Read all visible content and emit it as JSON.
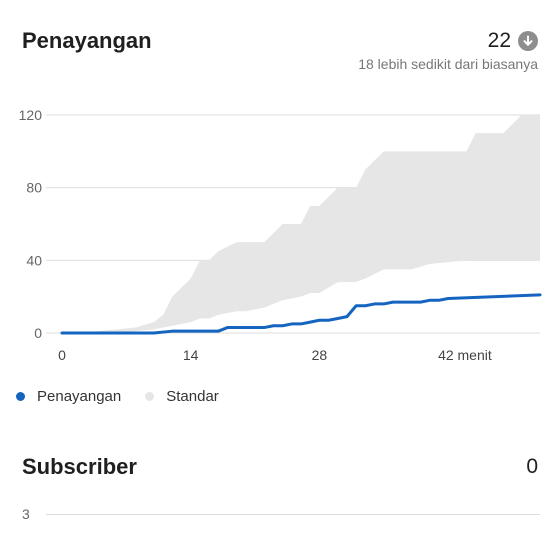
{
  "views_card": {
    "title": "Penayangan",
    "value": "22",
    "trend_icon": "arrow-down-circle-icon",
    "comparison_text": "18 lebih sedikit dari biasanya"
  },
  "chart_data": {
    "type": "line",
    "x_ticks": [
      "0",
      "14",
      "28",
      "42 menit"
    ],
    "x_tick_values": [
      0,
      14,
      28,
      42
    ],
    "y_ticks": [
      "0",
      "40",
      "80",
      "120"
    ],
    "y_tick_values": [
      0,
      40,
      80,
      120
    ],
    "xlim": [
      0,
      52
    ],
    "ylim": [
      0,
      120
    ],
    "grid": true,
    "legend_position": "bottom-left",
    "series": [
      {
        "name": "Penayangan",
        "color": "#1565c0",
        "x": [
          0,
          10,
          12,
          17,
          18,
          22,
          23,
          24,
          25,
          26,
          27,
          28,
          29,
          30,
          31,
          32,
          33,
          34,
          35,
          36,
          38,
          39,
          40,
          41,
          42,
          52
        ],
        "y": [
          0,
          0,
          1,
          1,
          3,
          3,
          4,
          4,
          5,
          5,
          6,
          7,
          7,
          8,
          9,
          15,
          15,
          16,
          16,
          17,
          17,
          17,
          18,
          18,
          19,
          21
        ]
      }
    ],
    "band": {
      "name": "Standar",
      "color": "#e6e6e6",
      "x": [
        0,
        4,
        8,
        10,
        11,
        12,
        14,
        15,
        16,
        17,
        19,
        20,
        22,
        23,
        24,
        26,
        27,
        28,
        29,
        30,
        32,
        33,
        35,
        38,
        40,
        44,
        45,
        48,
        50,
        51,
        52
      ],
      "upper": [
        0,
        1,
        3,
        6,
        10,
        20,
        30,
        40,
        40,
        45,
        50,
        50,
        50,
        55,
        60,
        60,
        70,
        70,
        75,
        80,
        80,
        90,
        100,
        100,
        100,
        100,
        110,
        110,
        120,
        120,
        120
      ],
      "lower": [
        0,
        0,
        1,
        2,
        3,
        4,
        6,
        8,
        8,
        10,
        12,
        12,
        14,
        16,
        18,
        20,
        22,
        22,
        25,
        28,
        28,
        30,
        35,
        35,
        38,
        40,
        40,
        40,
        40,
        40,
        40
      ]
    }
  },
  "legend": {
    "views_label": "Penayangan",
    "standard_label": "Standar",
    "views_color": "#1565c0",
    "standard_color": "#e6e6e6"
  },
  "subscriber_card": {
    "title": "Subscriber",
    "value": "0",
    "y_tick_label": "3"
  }
}
